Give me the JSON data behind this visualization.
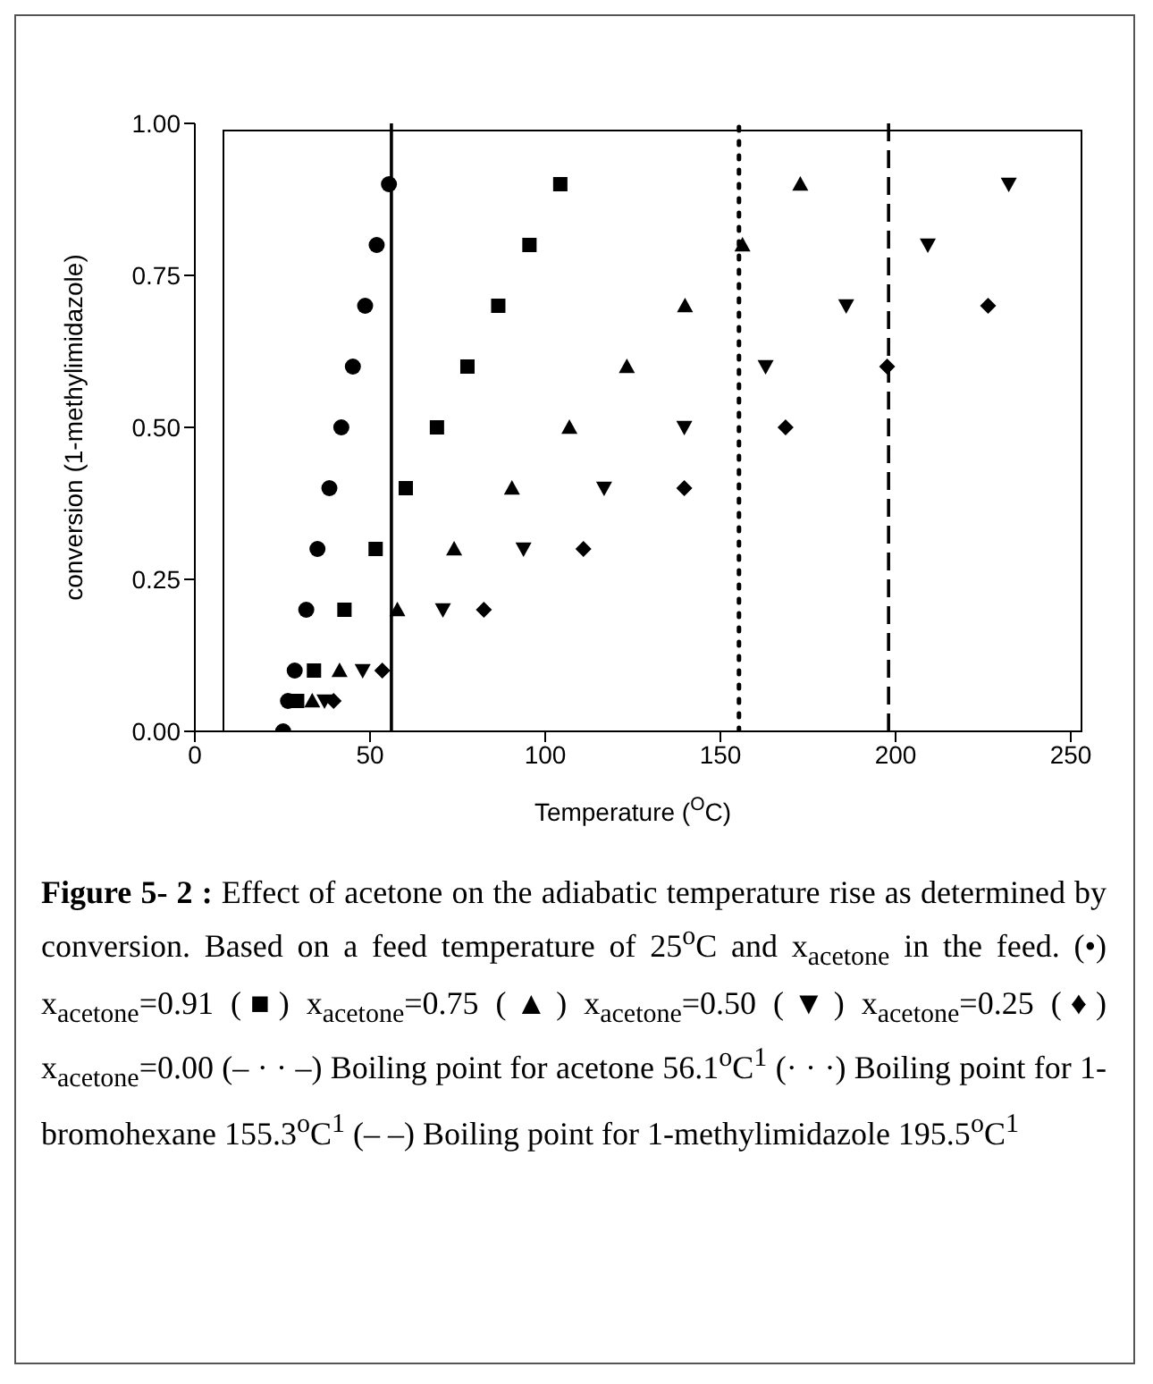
{
  "chart_data": {
    "type": "scatter",
    "xlabel": "Temperature ($^{O}$C)",
    "ylabel": "conversion (1-methylimidazole)",
    "xlim": [
      0,
      250
    ],
    "xticks": [
      0,
      50,
      100,
      150,
      200,
      250
    ],
    "ylim": [
      0,
      1
    ],
    "yticks": [
      {
        "value": 0,
        "label": "0.00"
      },
      {
        "value": 0.25,
        "label": "0.25"
      },
      {
        "value": 0.5,
        "label": "0.50"
      },
      {
        "value": 0.75,
        "label": "0.75"
      },
      {
        "value": 1,
        "label": "1.00"
      }
    ],
    "grid": false,
    "legend": false,
    "series": [
      {
        "color": "#000000",
        "marker": "circle",
        "x": [
          25.2,
          26.6,
          28.5,
          31.8,
          35,
          38.4,
          41.8,
          45.1,
          48.6,
          51.9,
          55.4
        ],
        "values": [
          0,
          0.05,
          0.1,
          0.2,
          0.3,
          0.4,
          0.5,
          0.6,
          0.7,
          0.8,
          0.9
        ]
      },
      {
        "color": "#000000",
        "marker": "square",
        "x": [
          29.2,
          34,
          42.7,
          51.6,
          60.2,
          69.1,
          77.8,
          86.6,
          95.5,
          104.3
        ],
        "values": [
          0.05,
          0.1,
          0.2,
          0.3,
          0.4,
          0.5,
          0.6,
          0.7,
          0.8,
          0.9
        ]
      },
      {
        "color": "#000000",
        "marker": "triangle",
        "x": [
          33.5,
          41.3,
          57.8,
          74,
          90.5,
          106.9,
          123.3,
          139.9,
          156.3,
          172.8
        ],
        "values": [
          0.05,
          0.1,
          0.2,
          0.3,
          0.4,
          0.5,
          0.6,
          0.7,
          0.8,
          0.9
        ]
      },
      {
        "color": "#000000",
        "marker": "triangle-down",
        "x": [
          37,
          47.9,
          70.8,
          93.8,
          116.8,
          139.7,
          162.9,
          185.9,
          209.2,
          232.3
        ],
        "values": [
          0.05,
          0.1,
          0.2,
          0.3,
          0.4,
          0.5,
          0.6,
          0.7,
          0.8,
          0.9
        ]
      },
      {
        "color": "#000000",
        "marker": "diamond",
        "x": [
          39.6,
          53.5,
          82.5,
          110.9,
          139.7,
          168.6,
          197.6,
          226.4
        ],
        "values": [
          0.05,
          0.1,
          0.2,
          0.3,
          0.4,
          0.5,
          0.6,
          0.7
        ]
      }
    ],
    "ref_lines": [
      {
        "axis": "x",
        "value": 56.1,
        "color": "#000000",
        "line_style": "solid"
      },
      {
        "axis": "x",
        "value": 155.3,
        "color": "#000000",
        "line_style": "dotted"
      },
      {
        "axis": "x",
        "value": 198,
        "color": "#000000",
        "line_style": "dashed"
      }
    ],
    "annotations": [
      "Figure 5- 2 :",
      "Effect of acetone on the adiabatic temperature rise as determined by conversion.  Based on a feed temperature of 25$^{o}$C and x$_{acetone}$ in the feed. (•) x$_{acetone}$=0.91 (■) x$_{acetone}$=0.75 (▲) x$_{acetone}$=0.50 (▼) x$_{acetone}$=0.25 (♦) x$_{acetone}$=0.00 (– · · –) Boiling point for acetone 56.1$^{o}$C$^{1}$ (· · ·) Boiling point for 1-bromohexane 155.3$^{o}$C$^{1}$ (– –) Boiling point for 1-methylimidazole 195.5$^{o}$C$^{1}$"
    ]
  }
}
